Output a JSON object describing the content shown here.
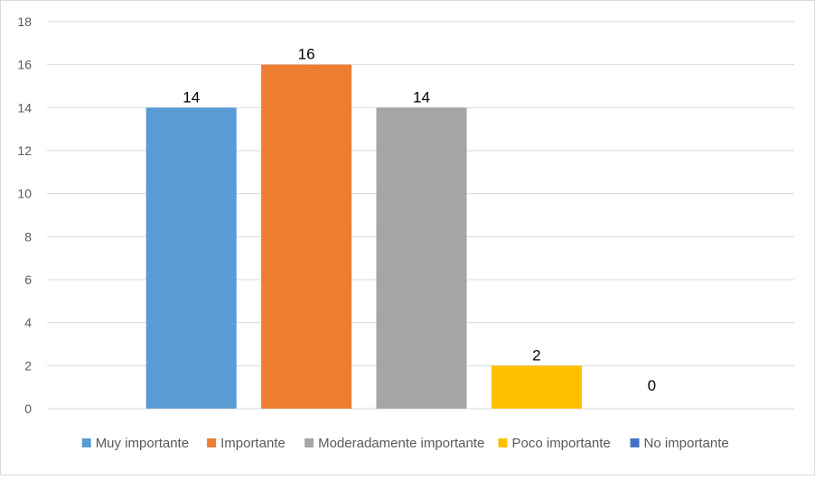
{
  "chart_data": {
    "type": "bar",
    "title": "",
    "xlabel": "",
    "ylabel": "",
    "ylim": [
      0,
      18
    ],
    "yticks": [
      0,
      2,
      4,
      6,
      8,
      10,
      12,
      14,
      16,
      18
    ],
    "grid": true,
    "legend_position": "bottom",
    "series": [
      {
        "name": "Muy importante",
        "value": 14,
        "color": "#5b9bd5"
      },
      {
        "name": "Importante",
        "value": 16,
        "color": "#ed7d31"
      },
      {
        "name": "Moderadamente importante",
        "value": 14,
        "color": "#a5a5a5"
      },
      {
        "name": "Poco importante",
        "value": 2,
        "color": "#ffc000"
      },
      {
        "name": "No importante",
        "value": 0,
        "color": "#4472c4"
      }
    ]
  }
}
